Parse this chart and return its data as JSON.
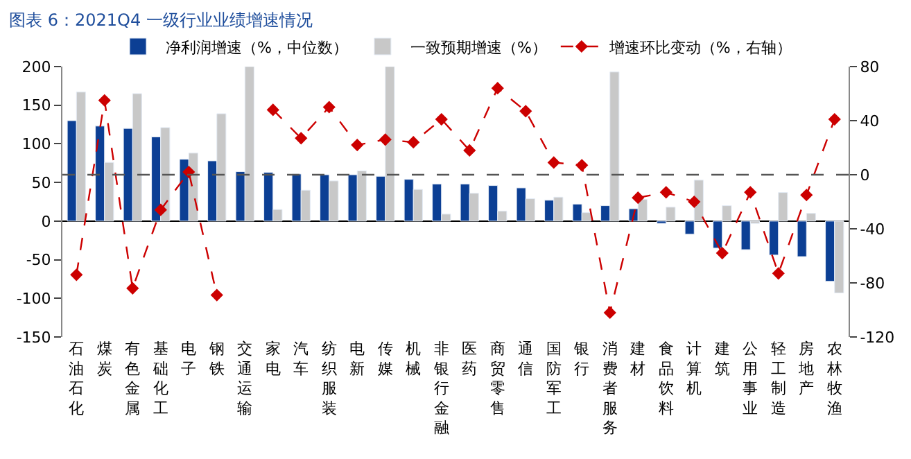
{
  "chart_data": {
    "type": "bar",
    "title": "图表 6：2021Q4 一级行业业绩增速情况",
    "categories": [
      "石油石化",
      "煤炭",
      "有色金属",
      "基础化工",
      "电子",
      "钢铁",
      "交通运输",
      "家电",
      "汽车",
      "纺织服装",
      "电新",
      "传媒",
      "机械",
      "非银行金融",
      "医药",
      "商贸零售",
      "通信",
      "国防军工",
      "银行",
      "消费者服务",
      "建材",
      "食品饮料",
      "计算机",
      "建筑",
      "公用事业",
      "轻工制造",
      "房地产",
      "农林牧渔"
    ],
    "series": [
      {
        "name": "净利润增速（%，中位数）",
        "color": "#0c3f94",
        "values": [
          130,
          123,
          120,
          109,
          80,
          78,
          64,
          63,
          61,
          60,
          60,
          58,
          54,
          48,
          48,
          46,
          43,
          27,
          22,
          20,
          16,
          -3,
          -17,
          -35,
          -37,
          -44,
          -46,
          -78
        ]
      },
      {
        "name": "一致预期增速（%）",
        "color": "#c8c8c8",
        "values": [
          167,
          76,
          165,
          121,
          88,
          139,
          200,
          15,
          40,
          52,
          65,
          200,
          41,
          9,
          36,
          13,
          29,
          31,
          11,
          193,
          28,
          18,
          53,
          20,
          -3,
          37,
          10,
          -93
        ]
      },
      {
        "name": "增速环比变动（%，右轴）",
        "type": "line",
        "axis": "y2",
        "color": "#cc0000",
        "marker": "diamond",
        "line_style": "dashed",
        "values": [
          -74,
          55,
          -84,
          -26,
          2,
          -89,
          null,
          48,
          27,
          50,
          22,
          26,
          24,
          41,
          18,
          64,
          47,
          9,
          7,
          -102,
          -17,
          -13,
          -20,
          -58,
          -13,
          -73,
          -15,
          41
        ]
      }
    ],
    "ylim": [
      -150,
      200
    ],
    "yticks": [
      -150,
      -100,
      -50,
      0,
      50,
      100,
      150,
      200
    ],
    "y2lim": [
      -120,
      80
    ],
    "y2ticks": [
      -120,
      -80,
      -40,
      0,
      40,
      80
    ],
    "ref_lines": [
      {
        "axis": "y2",
        "value": 0,
        "color": "#555555",
        "line_style": "dashed"
      }
    ],
    "legend": "top"
  }
}
